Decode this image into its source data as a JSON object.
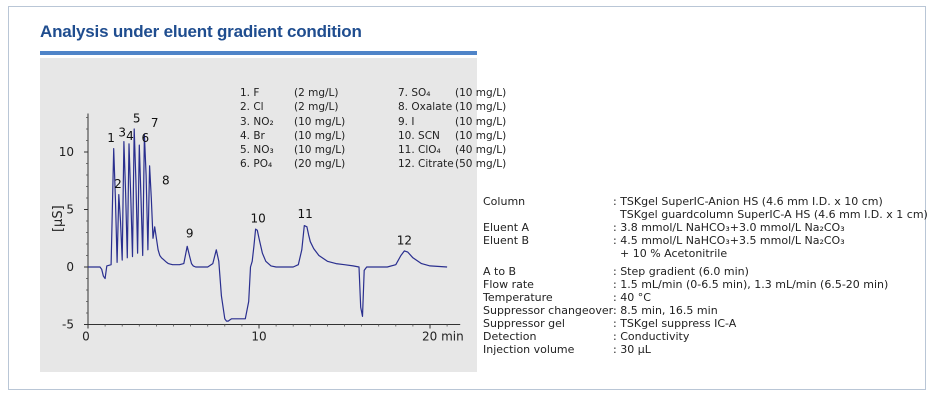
{
  "title": "Analysis under eluent gradient condition",
  "colors": {
    "title": "#1f4d8f",
    "accent_bar": "#4f84c8",
    "plot_background": "#e7e7e7",
    "trace": "#2a2f8f"
  },
  "chart_data": {
    "type": "line",
    "xlabel": "",
    "ylabel": "[μS]",
    "x_unit": "min",
    "xlim": [
      0,
      22
    ],
    "ylim": [
      -5,
      13
    ],
    "x_ticks": [
      {
        "value": 0,
        "label": "0"
      },
      {
        "value": 10,
        "label": "10"
      },
      {
        "value": 20,
        "label": "20 min"
      }
    ],
    "y_ticks": [
      {
        "value": 10,
        "label": "10"
      },
      {
        "value": 5,
        "label": "5"
      },
      {
        "value": 0,
        "label": "0"
      },
      {
        "value": -5,
        "label": "-5"
      }
    ],
    "grid": false,
    "series": [
      {
        "x": [
          0,
          0.7,
          0.8,
          0.9,
          1.0,
          1.1,
          1.35,
          1.5,
          1.6,
          1.7,
          1.8,
          1.9,
          2.0,
          2.1,
          2.2,
          2.3,
          2.4,
          2.5,
          2.6,
          2.7,
          2.8,
          2.9,
          3.0,
          3.1,
          3.2,
          3.3,
          3.4,
          3.5,
          3.6,
          3.7,
          3.8,
          3.9,
          4.0,
          4.1,
          4.2,
          4.3,
          4.45,
          4.6,
          4.7,
          4.8,
          4.95,
          5.1,
          5.35,
          5.6,
          5.8,
          5.95,
          6.05,
          6.15,
          6.3,
          6.6,
          7.0,
          7.3,
          7.5,
          7.65,
          7.8,
          8.0,
          8.1,
          8.2,
          8.3,
          8.4,
          8.5,
          8.7,
          9.0,
          9.2,
          9.4,
          9.5,
          9.6,
          9.7,
          9.8,
          9.9,
          10.0,
          10.2,
          10.4,
          10.7,
          11.0,
          11.5,
          12.0,
          12.3,
          12.5,
          12.65,
          12.8,
          12.9,
          13.0,
          13.2,
          13.5,
          14.0,
          14.5,
          15.0,
          15.5,
          15.85,
          15.95,
          16.05,
          16.15,
          16.3,
          16.5,
          17.0,
          17.5,
          18.0,
          18.3,
          18.5,
          18.7,
          19.0,
          19.5,
          20.0,
          21.0
        ],
        "y": [
          0,
          0,
          -0.2,
          -0.8,
          -1.0,
          0.1,
          0.2,
          10.3,
          6.0,
          0.4,
          6.3,
          4.0,
          0.6,
          10.9,
          6.5,
          0.8,
          10.7,
          6.0,
          0.9,
          12.0,
          7.5,
          1.2,
          10.6,
          6.0,
          1.0,
          11.5,
          8.0,
          1.5,
          8.8,
          6.0,
          2.5,
          3.5,
          2.5,
          1.5,
          1.0,
          0.8,
          0.6,
          0.4,
          0.3,
          0.25,
          0.2,
          0.2,
          0.2,
          0.3,
          1.8,
          0.9,
          0.3,
          0.1,
          0.0,
          0.0,
          0.0,
          0.3,
          1.5,
          0.5,
          -2.5,
          -4.5,
          -4.7,
          -4.7,
          -4.6,
          -4.5,
          -4.5,
          -4.5,
          -4.5,
          -4.5,
          -3.0,
          0.0,
          0.5,
          1.8,
          3.3,
          3.2,
          2.5,
          1.2,
          0.5,
          0.1,
          0.0,
          0.0,
          0.0,
          0.2,
          1.5,
          3.6,
          3.5,
          2.8,
          2.2,
          1.6,
          1.0,
          0.5,
          0.3,
          0.2,
          0.1,
          0.0,
          -3.5,
          -4.3,
          -0.3,
          0.0,
          0.0,
          0.0,
          0.0,
          0.2,
          1.0,
          1.4,
          1.3,
          0.8,
          0.3,
          0.1,
          0.0
        ]
      }
    ],
    "peak_labels": [
      {
        "label": "1",
        "x": 1.35,
        "y": 10.6
      },
      {
        "label": "2",
        "x": 1.75,
        "y": 6.6
      },
      {
        "label": "3",
        "x": 2.0,
        "y": 11.1
      },
      {
        "label": "4",
        "x": 2.45,
        "y": 10.8
      },
      {
        "label": "5",
        "x": 2.85,
        "y": 12.3
      },
      {
        "label": "6",
        "x": 3.35,
        "y": 10.6
      },
      {
        "label": "7",
        "x": 3.9,
        "y": 11.9
      },
      {
        "label": "8",
        "x": 4.55,
        "y": 6.9
      },
      {
        "label": "9",
        "x": 5.95,
        "y": 2.3
      },
      {
        "label": "10",
        "x": 9.95,
        "y": 3.6
      },
      {
        "label": "11",
        "x": 12.7,
        "y": 4.0
      },
      {
        "label": "12",
        "x": 18.5,
        "y": 1.7
      }
    ]
  },
  "peak_list": [
    [
      {
        "name": "1. F",
        "conc": "(2 mg/L)"
      },
      {
        "name": "7. SO₄",
        "conc": "(10 mg/L)"
      }
    ],
    [
      {
        "name": "2. Cl",
        "conc": "(2 mg/L)"
      },
      {
        "name": "8. Oxalate",
        "conc": "(10 mg/L)"
      }
    ],
    [
      {
        "name": "3. NO₂",
        "conc": "(10 mg/L)"
      },
      {
        "name": "9. I",
        "conc": "(10 mg/L)"
      }
    ],
    [
      {
        "name": "4. Br",
        "conc": "(10 mg/L)"
      },
      {
        "name": "10. SCN",
        "conc": "(10 mg/L)"
      }
    ],
    [
      {
        "name": "5. NO₃",
        "conc": "(10 mg/L)"
      },
      {
        "name": "11. ClO₄",
        "conc": "(40 mg/L)"
      }
    ],
    [
      {
        "name": "6. PO₄",
        "conc": "(20 mg/L)"
      },
      {
        "name": "12. Citrate",
        "conc": "(50 mg/L)"
      }
    ]
  ],
  "conditions": [
    {
      "label": "Column",
      "values": [
        ": TSKgel SuperIC-Anion HS (4.6 mm I.D. x 10 cm)",
        "  TSKgel guardcolumn SuperIC-A HS (4.6 mm I.D. x 1 cm)"
      ]
    },
    {
      "label": "Eluent A",
      "values": [
        ": 3.8 mmol/L NaHCO₃+3.0 mmol/L Na₂CO₃"
      ]
    },
    {
      "label": "Eluent B",
      "values": [
        ": 4.5 mmol/L NaHCO₃+3.5 mmol/L Na₂CO₃",
        "  + 10 % Acetonitrile"
      ]
    },
    {
      "label": "A to B",
      "values": [
        ": Step gradient (6.0 min)"
      ]
    },
    {
      "label": "Flow rate",
      "values": [
        ": 1.5 mL/min (0-6.5 min), 1.3 mL/min (6.5-20 min)"
      ]
    },
    {
      "label": "Temperature",
      "values": [
        ": 40 °C"
      ]
    },
    {
      "label": "Suppressor changeover",
      "values": [
        ": 8.5 min, 16.5 min"
      ]
    },
    {
      "label": "Suppressor gel",
      "values": [
        ": TSKgel suppress IC-A"
      ]
    },
    {
      "label": "Detection",
      "values": [
        ": Conductivity"
      ]
    },
    {
      "label": "Injection volume",
      "values": [
        ": 30 μL"
      ]
    }
  ]
}
